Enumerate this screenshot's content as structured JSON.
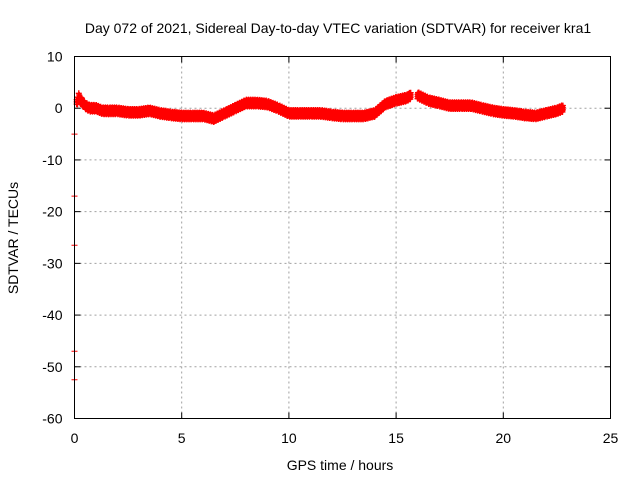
{
  "chart_data": {
    "type": "scatter",
    "title": "Day 072 of 2021, Sidereal Day-to-day VTEC variation (SDTVAR) for receiver kra1",
    "xlabel": "GPS time / hours",
    "ylabel": "SDTVAR / TECUs",
    "xlim": [
      0,
      25
    ],
    "ylim": [
      -60,
      10
    ],
    "xticks": [
      0,
      5,
      10,
      15,
      20,
      25
    ],
    "yticks": [
      10,
      0,
      -10,
      -20,
      -30,
      -40,
      -50,
      -60
    ],
    "grid": true,
    "series_color": "#ff0000",
    "series": [
      {
        "name": "SDTVAR",
        "x": [
          0.1,
          0.2,
          0.3,
          0.4,
          0.5,
          0.7,
          1.0,
          1.3,
          1.6,
          2.0,
          2.5,
          3.0,
          3.5,
          4.0,
          4.5,
          5.0,
          5.5,
          6.0,
          6.5,
          7.0,
          7.5,
          8.0,
          8.5,
          9.0,
          9.5,
          10.0,
          10.5,
          11.0,
          11.5,
          12.0,
          12.5,
          13.0,
          13.5,
          14.0,
          14.5,
          15.0,
          15.5,
          15.7,
          16.0,
          16.5,
          17.0,
          17.5,
          18.0,
          18.5,
          19.0,
          19.5,
          20.0,
          20.5,
          21.0,
          21.5,
          22.0,
          22.5,
          22.8
        ],
        "y": [
          1.0,
          2.0,
          1.5,
          1.0,
          0.5,
          0.0,
          0.0,
          -0.5,
          -0.5,
          -0.5,
          -0.8,
          -0.8,
          -0.5,
          -1.0,
          -1.3,
          -1.5,
          -1.5,
          -1.5,
          -2.0,
          -1.0,
          0.0,
          1.0,
          1.0,
          0.8,
          0.0,
          -1.0,
          -1.0,
          -1.0,
          -1.0,
          -1.3,
          -1.5,
          -1.5,
          -1.5,
          -1.0,
          0.8,
          1.5,
          2.0,
          2.5,
          2.5,
          1.5,
          1.0,
          0.5,
          0.5,
          0.5,
          0.0,
          -0.5,
          -0.8,
          -1.0,
          -1.3,
          -1.5,
          -1.0,
          -0.5,
          0.0
        ]
      }
    ],
    "outliers": {
      "x": [
        0.0,
        0.0,
        0.0,
        0.0,
        0.0
      ],
      "y": [
        -5.0,
        -17.0,
        -26.5,
        -47.0,
        -52.5
      ]
    }
  }
}
